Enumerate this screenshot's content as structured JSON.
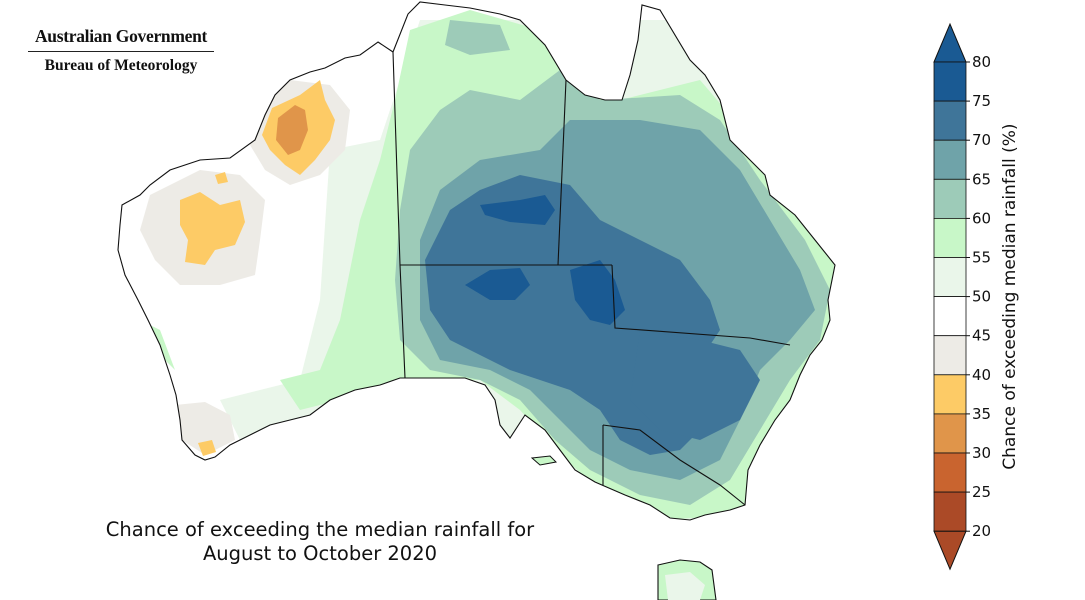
{
  "logo": {
    "organisation": "Australian Government",
    "agency": "Bureau of Meteorology"
  },
  "title_lines": [
    "Chance of exceeding the median rainfall for",
    "August to October 2020"
  ],
  "colorbar": {
    "label": "Chance of exceeding median rainfall (%)",
    "ticks": [
      "80",
      "75",
      "70",
      "65",
      "60",
      "55",
      "50",
      "45",
      "40",
      "35",
      "30",
      "25",
      "20"
    ],
    "bands": [
      {
        "from": 75,
        "to": 80,
        "color": "#1a5a93"
      },
      {
        "from": 70,
        "to": 75,
        "color": "#3f7599"
      },
      {
        "from": 65,
        "to": 70,
        "color": "#6fa3a9"
      },
      {
        "from": 60,
        "to": 65,
        "color": "#9dcbb8"
      },
      {
        "from": 55,
        "to": 60,
        "color": "#c8f7c8"
      },
      {
        "from": 50,
        "to": 55,
        "color": "#eaf6ea"
      },
      {
        "from": 45,
        "to": 50,
        "color": "#ffffff"
      },
      {
        "from": 40,
        "to": 45,
        "color": "#edebe6"
      },
      {
        "from": 35,
        "to": 40,
        "color": "#fdcb66"
      },
      {
        "from": 30,
        "to": 35,
        "color": "#e0954a"
      },
      {
        "from": 25,
        "to": 30,
        "color": "#c9642f"
      },
      {
        "from": 20,
        "to": 25,
        "color": "#ab4a27"
      }
    ],
    "max_arrow_color": "#1a5a93",
    "min_arrow_color": "#ab4a27"
  },
  "map_colors": {
    "outline": "#111111",
    "state_border": "#111111"
  }
}
